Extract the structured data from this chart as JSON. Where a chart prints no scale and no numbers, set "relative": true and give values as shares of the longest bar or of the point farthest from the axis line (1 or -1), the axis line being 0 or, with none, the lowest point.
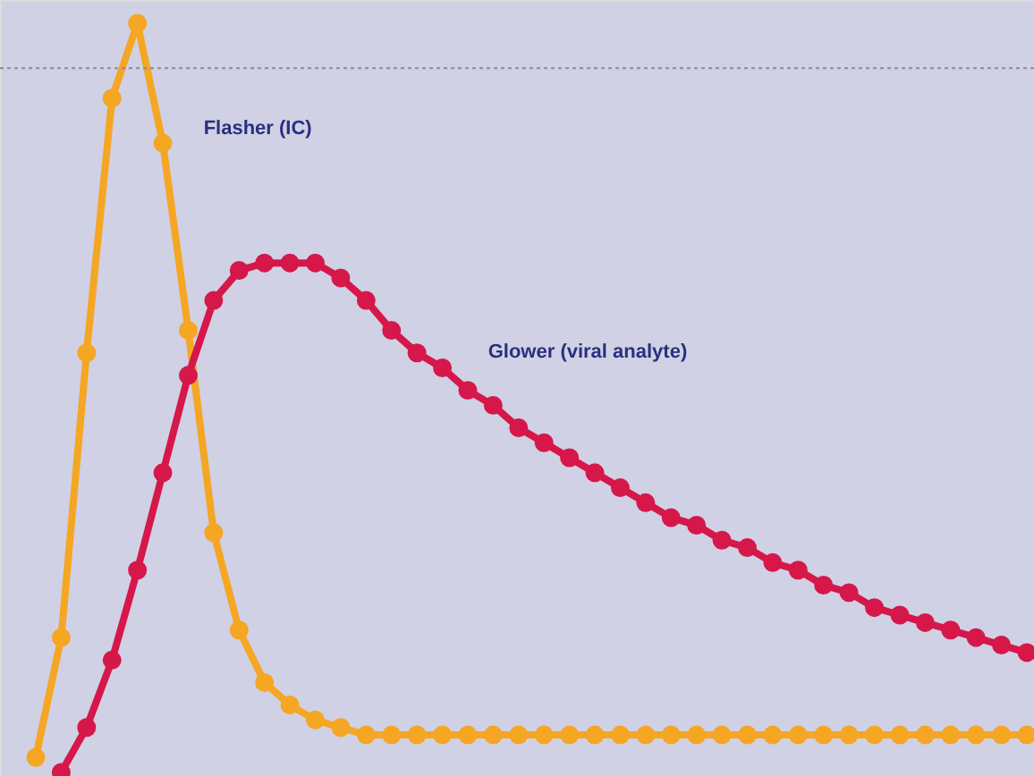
{
  "chart_data": {
    "type": "line",
    "relative": true,
    "marker": "circle",
    "line_style": "solid",
    "grid": false,
    "categories": [
      null,
      null,
      null,
      null,
      null,
      null,
      null,
      null,
      null,
      null,
      null,
      null,
      null,
      null,
      null,
      null,
      null,
      null,
      null,
      null,
      null,
      null,
      null,
      null,
      null,
      null,
      null,
      null,
      null,
      null,
      null,
      null,
      null,
      null,
      null,
      null,
      null,
      null,
      null,
      null
    ],
    "series": [
      {
        "name": "Flasher (IC)",
        "color": "#f5a623",
        "values": [
          0.02,
          0.18,
          0.56,
          0.9,
          1.0,
          0.84,
          0.59,
          0.32,
          0.19,
          0.12,
          0.09,
          0.07,
          0.06,
          0.05,
          0.05,
          0.05,
          0.05,
          0.05,
          0.05,
          0.05,
          0.05,
          0.05,
          0.05,
          0.05,
          0.05,
          0.05,
          0.05,
          0.05,
          0.05,
          0.05,
          0.05,
          0.05,
          0.05,
          0.05,
          0.05,
          0.05,
          0.05,
          0.05,
          0.05,
          0.05
        ]
      },
      {
        "name": "Glower (viral analyte)",
        "color": "#d6174a",
        "values": [
          null,
          0,
          0.06,
          0.15,
          0.27,
          0.4,
          0.53,
          0.63,
          0.67,
          0.68,
          0.68,
          0.68,
          0.66,
          0.63,
          0.59,
          0.56,
          0.54,
          0.51,
          0.49,
          0.46,
          0.44,
          0.42,
          0.4,
          0.38,
          0.36,
          0.34,
          0.33,
          0.31,
          0.3,
          0.28,
          0.27,
          0.25,
          0.24,
          0.22,
          0.21,
          0.2,
          0.19,
          0.18,
          0.17,
          0.16
        ]
      }
    ],
    "ref_lines": [
      {
        "axis": "y",
        "value": 0.94,
        "color": "#8a8a9a",
        "line_style": "dotted"
      }
    ]
  }
}
